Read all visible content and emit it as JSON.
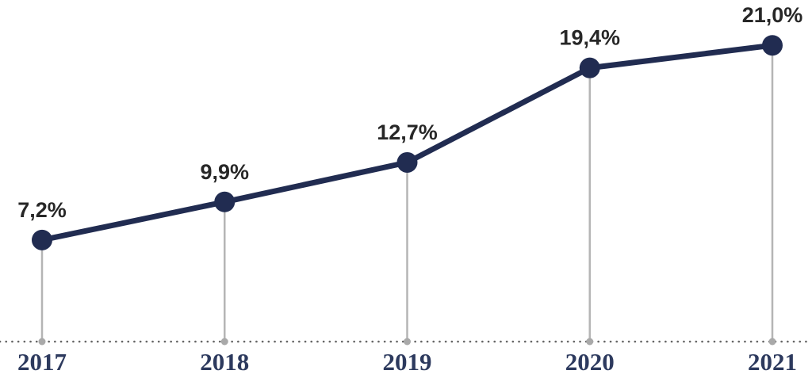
{
  "chart_data": {
    "type": "line",
    "title": "",
    "xlabel": "",
    "ylabel": "",
    "categories": [
      "2017",
      "2018",
      "2019",
      "2020",
      "2021"
    ],
    "values": [
      7.2,
      9.9,
      12.7,
      19.4,
      21.0
    ],
    "data_labels": [
      "7,2%",
      "9,9%",
      "12,7%",
      "19,4%",
      "21,0%"
    ],
    "ylim": [
      0,
      23
    ],
    "grid": false,
    "legend": "none",
    "colors": {
      "line": "#212C51",
      "point": "#212C51",
      "data_label": "#272727",
      "year_label": "#2D3A5E",
      "stem": "#B5B5B5",
      "stem_base_dot": "#A9A9A9",
      "baseline_dots": "#666666",
      "background": "#FFFFFF"
    }
  }
}
